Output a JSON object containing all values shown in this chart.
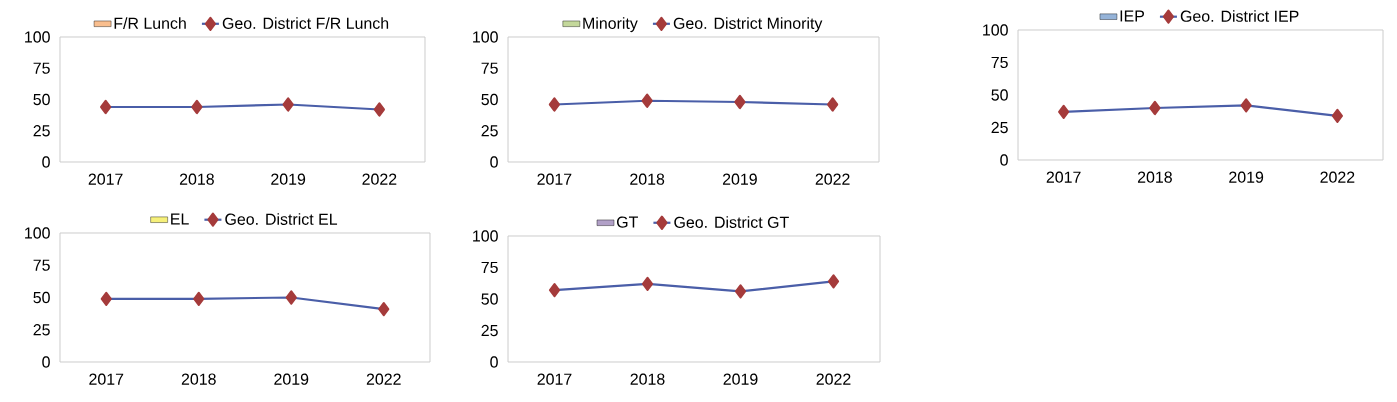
{
  "chart_data": [
    {
      "type": "line",
      "categories": [
        "2017",
        "2018",
        "2019",
        "2022"
      ],
      "ylim": [
        0,
        100
      ],
      "yticks": [
        0,
        25,
        50,
        75,
        100
      ],
      "legend": "top",
      "marker": "diamond",
      "series": [
        {
          "name": "F/R Lunch",
          "type": "bar",
          "color": "#f9be8e",
          "values": [
            null,
            null,
            null,
            null
          ]
        },
        {
          "name": "Geo. District F/R Lunch",
          "color": "#4a5ea8",
          "values": [
            44,
            44,
            46,
            42
          ]
        }
      ]
    },
    {
      "type": "line",
      "categories": [
        "2017",
        "2018",
        "2019",
        "2022"
      ],
      "ylim": [
        0,
        100
      ],
      "yticks": [
        0,
        25,
        50,
        75,
        100
      ],
      "legend": "top",
      "marker": "diamond",
      "series": [
        {
          "name": "Minority",
          "type": "bar",
          "color": "#c4d89b",
          "values": [
            null,
            null,
            null,
            null
          ]
        },
        {
          "name": "Geo. District Minority",
          "color": "#4a5ea8",
          "values": [
            46,
            49,
            48,
            46
          ]
        }
      ]
    },
    {
      "type": "line",
      "categories": [
        "2017",
        "2018",
        "2019",
        "2022"
      ],
      "ylim": [
        0,
        100
      ],
      "yticks": [
        0,
        25,
        50,
        75,
        100
      ],
      "legend": "top",
      "marker": "diamond",
      "series": [
        {
          "name": "IEP",
          "type": "bar",
          "color": "#95b3d8",
          "values": [
            null,
            null,
            null,
            null
          ]
        },
        {
          "name": "Geo. District IEP",
          "color": "#4a5ea8",
          "values": [
            37,
            40,
            42,
            34
          ]
        }
      ]
    },
    {
      "type": "line",
      "categories": [
        "2017",
        "2018",
        "2019",
        "2022"
      ],
      "ylim": [
        0,
        100
      ],
      "yticks": [
        0,
        25,
        50,
        75,
        100
      ],
      "legend": "top",
      "marker": "diamond",
      "series": [
        {
          "name": "EL",
          "type": "bar",
          "color": "#f6f07a",
          "values": [
            null,
            null,
            null,
            null
          ]
        },
        {
          "name": "Geo. District EL",
          "color": "#4a5ea8",
          "values": [
            49,
            49,
            50,
            41
          ]
        }
      ]
    },
    {
      "type": "line",
      "categories": [
        "2017",
        "2018",
        "2019",
        "2022"
      ],
      "ylim": [
        0,
        100
      ],
      "yticks": [
        0,
        25,
        50,
        75,
        100
      ],
      "legend": "top",
      "marker": "diamond",
      "series": [
        {
          "name": "GT",
          "type": "bar",
          "color": "#b1a0c7",
          "values": [
            null,
            null,
            null,
            null
          ]
        },
        {
          "name": "Geo. District GT",
          "color": "#4a5ea8",
          "values": [
            57,
            62,
            56,
            64
          ]
        }
      ]
    }
  ]
}
